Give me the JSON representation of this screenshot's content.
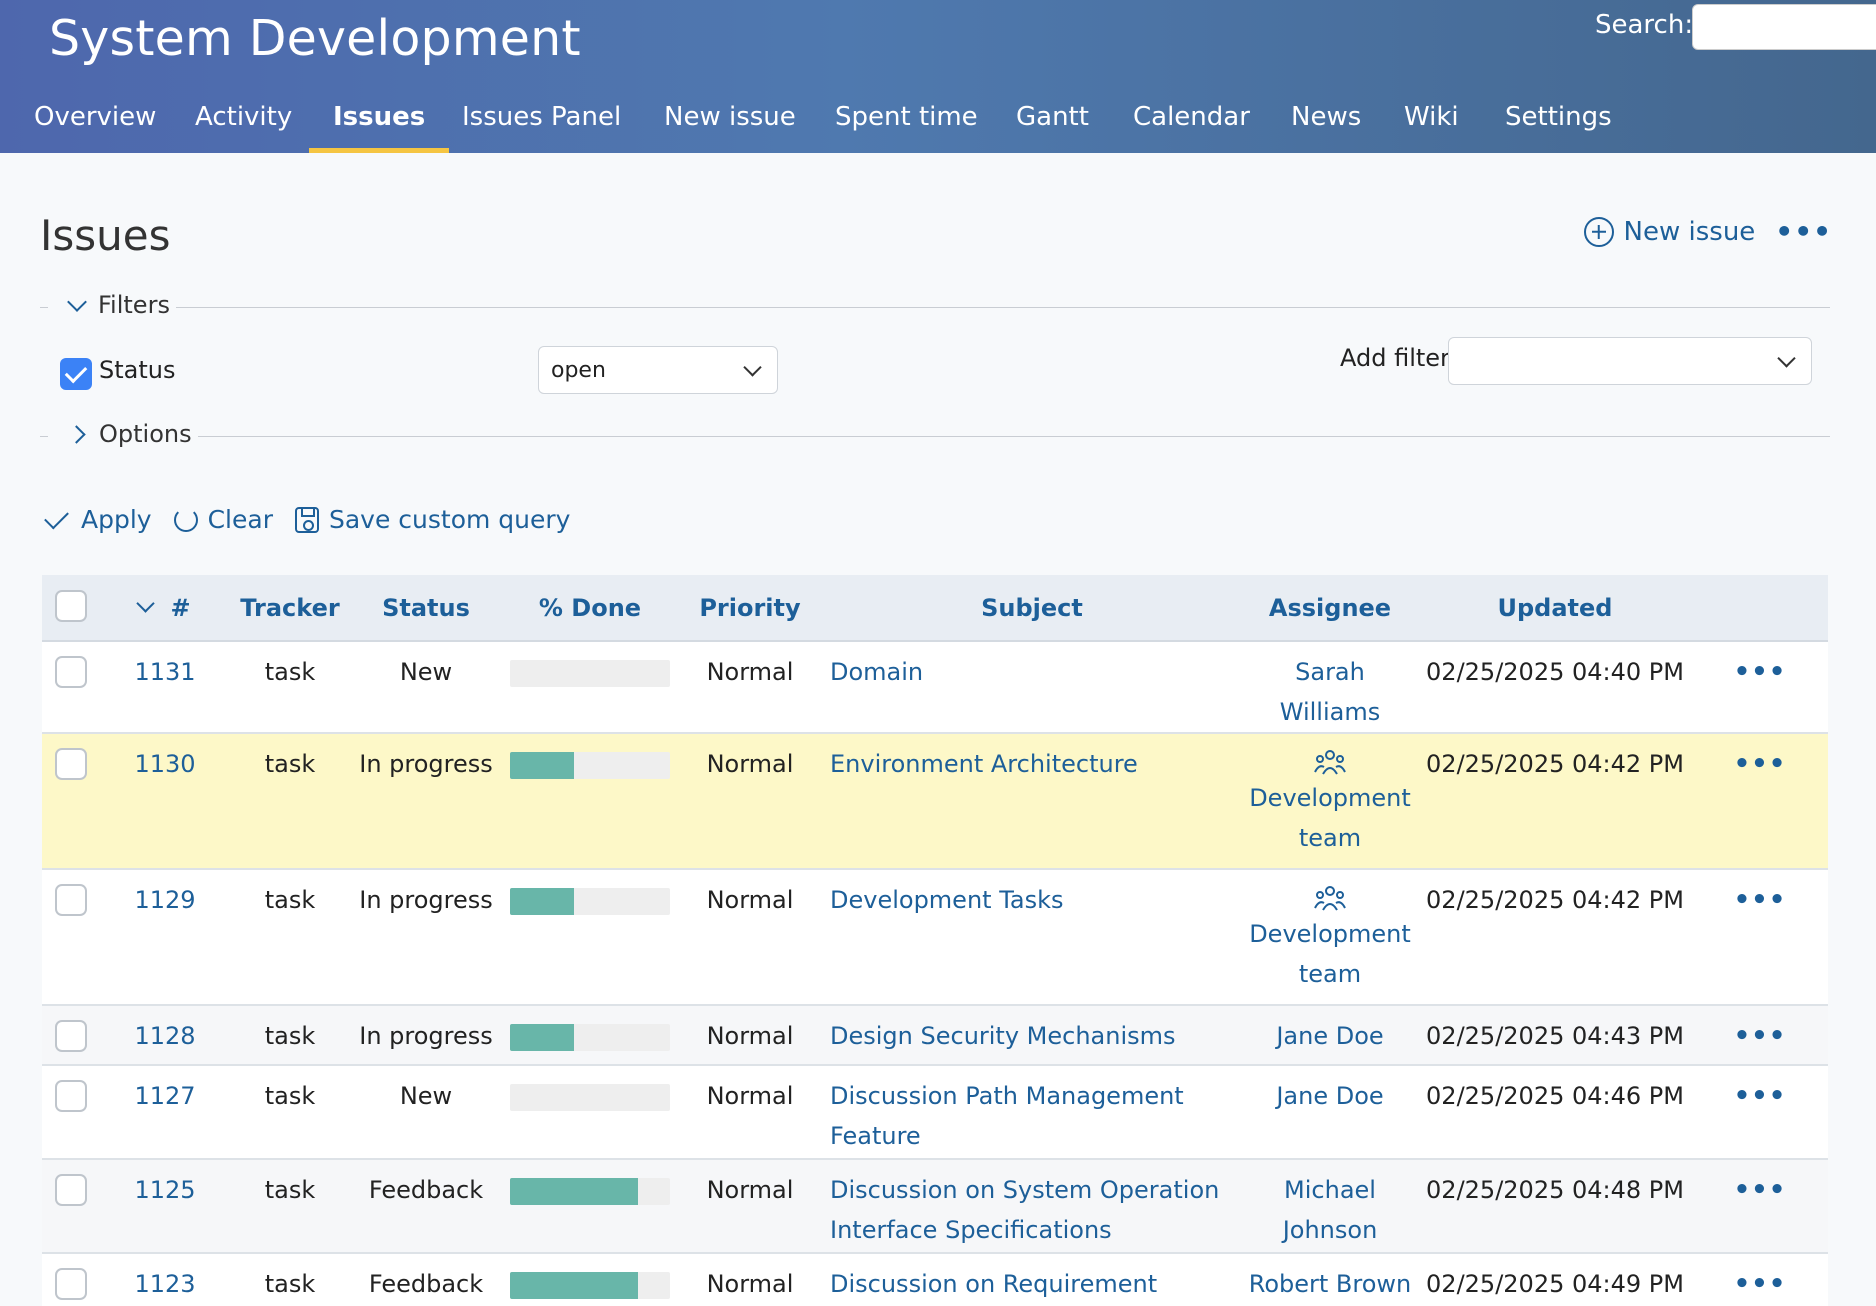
{
  "header": {
    "project_title": "System Development",
    "search_label": "Search:",
    "search_value": "",
    "menu": [
      {
        "label": "Overview"
      },
      {
        "label": "Activity"
      },
      {
        "label": "Issues",
        "active": true
      },
      {
        "label": "Issues Panel"
      },
      {
        "label": "New issue"
      },
      {
        "label": "Spent time"
      },
      {
        "label": "Gantt"
      },
      {
        "label": "Calendar"
      },
      {
        "label": "News"
      },
      {
        "label": "Wiki"
      },
      {
        "label": "Settings"
      }
    ]
  },
  "page": {
    "title": "Issues",
    "new_issue_label": "New issue",
    "more_label": "•••"
  },
  "filters": {
    "legend": "Filters",
    "status_label": "Status",
    "status_checked": true,
    "status_operator": "open",
    "add_filter_label": "Add filter",
    "add_filter_value": ""
  },
  "options": {
    "legend": "Options"
  },
  "actions": {
    "apply": "Apply",
    "clear": "Clear",
    "save_query": "Save custom query"
  },
  "table": {
    "columns": {
      "id": "#",
      "tracker": "Tracker",
      "status": "Status",
      "done": "% Done",
      "priority": "Priority",
      "subject": "Subject",
      "assignee": "Assignee",
      "updated": "Updated"
    },
    "rows": [
      {
        "id": "1131",
        "tracker": "task",
        "status": "New",
        "done_ratio": 0,
        "priority": "Normal",
        "subject": "Domain",
        "assignee": "Sarah Williams",
        "assignee_is_group": false,
        "updated": "02/25/2025 04:40 PM"
      },
      {
        "id": "1130",
        "tracker": "task",
        "status": "In progress",
        "done_ratio": 40,
        "priority": "Normal",
        "subject": "Environment Architecture",
        "assignee": "Development team",
        "assignee_is_group": true,
        "updated": "02/25/2025 04:42 PM"
      },
      {
        "id": "1129",
        "tracker": "task",
        "status": "In progress",
        "done_ratio": 40,
        "priority": "Normal",
        "subject": "Development Tasks",
        "assignee": "Development team",
        "assignee_is_group": true,
        "updated": "02/25/2025 04:42 PM"
      },
      {
        "id": "1128",
        "tracker": "task",
        "status": "In progress",
        "done_ratio": 40,
        "priority": "Normal",
        "subject": "Design Security Mechanisms",
        "assignee": "Jane Doe",
        "assignee_is_group": false,
        "updated": "02/25/2025 04:43 PM"
      },
      {
        "id": "1127",
        "tracker": "task",
        "status": "New",
        "done_ratio": 0,
        "priority": "Normal",
        "subject": "Discussion Path Management Feature",
        "assignee": "Jane Doe",
        "assignee_is_group": false,
        "updated": "02/25/2025 04:46 PM"
      },
      {
        "id": "1125",
        "tracker": "task",
        "status": "Feedback",
        "done_ratio": 80,
        "priority": "Normal",
        "subject": "Discussion on System Operation Interface Specifications",
        "assignee": "Michael Johnson",
        "assignee_is_group": false,
        "updated": "02/25/2025 04:48 PM"
      },
      {
        "id": "1123",
        "tracker": "task",
        "status": "Feedback",
        "done_ratio": 80,
        "priority": "Normal",
        "subject": "Discussion on Requirement Features",
        "assignee": "Robert Brown",
        "assignee_is_group": false,
        "updated": "02/25/2025 04:49 PM"
      }
    ],
    "row_actions_label": "•••"
  },
  "colors": {
    "accent": "#1d5f99",
    "menu_active_underline": "#f5c542",
    "progress_fill": "#68b6a9",
    "highlight_row": "#fdf8c8"
  }
}
